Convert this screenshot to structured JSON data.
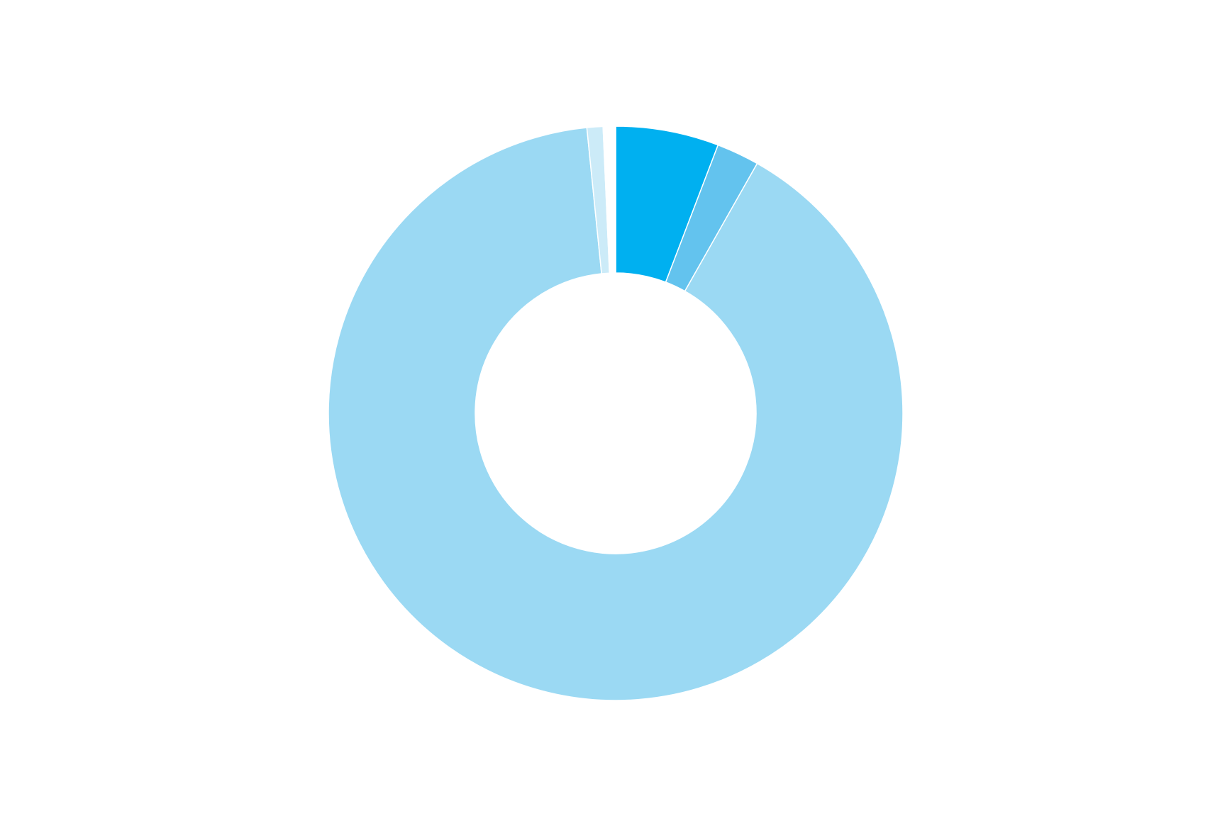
{
  "chart_data": {
    "type": "pie",
    "variant": "donut",
    "title": "",
    "start_angle": "top, clockwise",
    "legend": "none",
    "data_labels": "none",
    "slices": [
      {
        "value": 5.8,
        "color": "#00B0F0"
      },
      {
        "value": 2.4,
        "color": "#63C3EE"
      },
      {
        "value": 90.2,
        "color": "#9BD9F3"
      },
      {
        "value": 0.9,
        "color": "#CCEBF8"
      },
      {
        "value": 0.7,
        "color": "#FFFFFF"
      }
    ]
  }
}
